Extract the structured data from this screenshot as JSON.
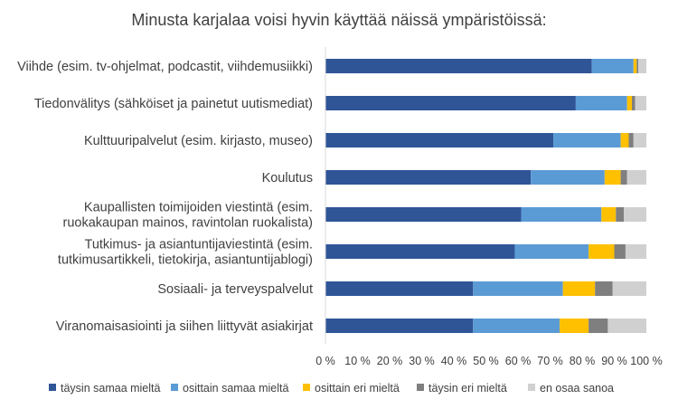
{
  "chart_data": {
    "type": "bar",
    "orientation": "horizontal",
    "stacked": true,
    "title": "Minusta karjalaa voisi hyvin käyttää näissä ympäristöissä:",
    "categories": [
      [
        "Viihde (esim. tv-ohjelmat, podcastit, viihdemusiikki)"
      ],
      [
        "Tiedonvälitys (sähköiset ja painetut uutismediat)"
      ],
      [
        "Kulttuuripalvelut (esim. kirjasto, museo)"
      ],
      [
        "Koulutus"
      ],
      [
        "Kaupallisten toimijoiden viestintä (esim.",
        "ruokakaupan mainos, ravintolan ruokalista)"
      ],
      [
        "Tutkimus- ja asiantuntijaviestintä (esim.",
        "tutkimusartikkeli, tietokirja, asiantuntijablogi)"
      ],
      [
        "Sosiaali- ja terveyspalvelut"
      ],
      [
        "Viranomaisasiointi ja siihen liittyvät asiakirjat"
      ]
    ],
    "series": [
      {
        "name": "täysin samaa mieltä",
        "color": "#2f5597",
        "values": [
          83,
          78,
          71,
          64,
          61,
          59,
          46,
          46
        ]
      },
      {
        "name": "osittain samaa mieltä",
        "color": "#5b9bd5",
        "values": [
          13,
          16,
          21,
          23,
          25,
          23,
          28,
          27
        ]
      },
      {
        "name": "osittain eri mieltä",
        "color": "#ffc000",
        "values": [
          1,
          1.5,
          2.5,
          5,
          4.5,
          8,
          10,
          9
        ]
      },
      {
        "name": "täysin eri mieltä",
        "color": "#7f7f7f",
        "values": [
          0.5,
          1,
          1.5,
          2,
          2.5,
          3.5,
          5.5,
          6
        ]
      },
      {
        "name": "en osaa sanoa",
        "color": "#d0d0d0",
        "values": [
          2.5,
          3.5,
          4,
          6,
          7,
          6.5,
          10.5,
          12
        ]
      }
    ],
    "xaxis": {
      "ticks": [
        "0 %",
        "10 %",
        "20 %",
        "30 %",
        "40 %",
        "50 %",
        "60 %",
        "70 %",
        "80 %",
        "90 %",
        "100 %"
      ],
      "range": [
        0,
        100
      ]
    },
    "grid": false,
    "legend_position": "bottom"
  }
}
